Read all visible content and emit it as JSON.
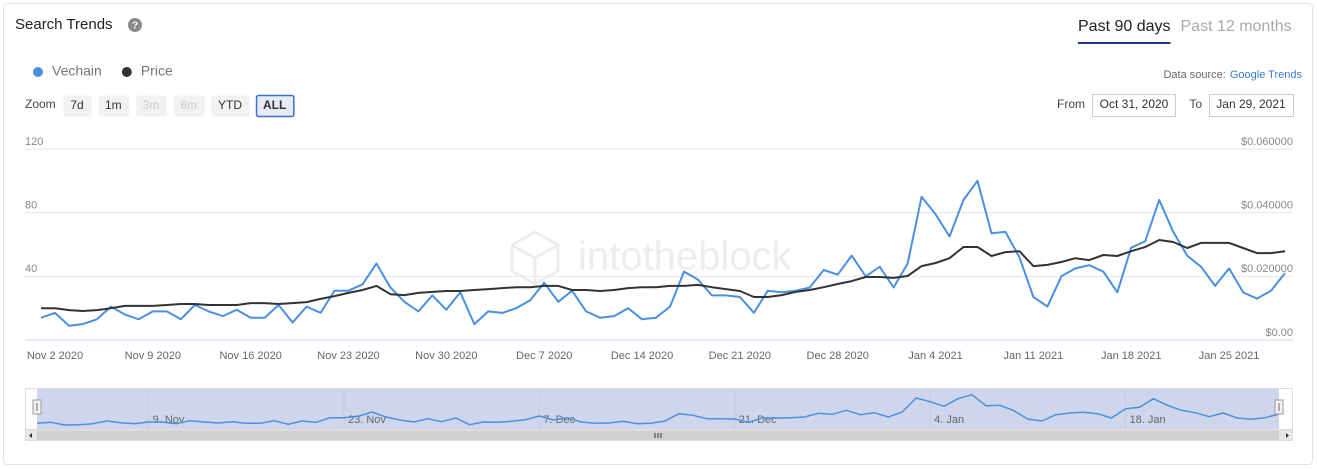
{
  "header": {
    "help": "?",
    "tabs": [
      {
        "label": "Past 90 days",
        "active": true
      },
      {
        "label": "Past 12 months",
        "active": false
      }
    ]
  },
  "source": {
    "label": "Data source:",
    "link": "Google Trends"
  },
  "zoom": {
    "label": "Zoom",
    "buttons": [
      {
        "label": "7d",
        "disabled": false,
        "active": false
      },
      {
        "label": "1m",
        "disabled": false,
        "active": false
      },
      {
        "label": "3m",
        "disabled": true,
        "active": false
      },
      {
        "label": "6m",
        "disabled": true,
        "active": false
      },
      {
        "label": "YTD",
        "disabled": false,
        "active": false
      },
      {
        "label": "ALL",
        "disabled": false,
        "active": true
      }
    ]
  },
  "date_range": {
    "from_label": "From",
    "from": "Oct 31, 2020",
    "to_label": "To",
    "to": "Jan 29, 2021"
  },
  "watermark": "intotheblock",
  "navigator": {
    "xticks": [
      {
        "value": "2020-11-09",
        "label": "9. Nov"
      },
      {
        "value": "2020-11-23",
        "label": "23. Nov"
      },
      {
        "value": "2020-12-07",
        "label": "7. Dec"
      },
      {
        "value": "2020-12-21",
        "label": "21. Dec"
      },
      {
        "value": "2021-01-04",
        "label": "4. Jan"
      },
      {
        "value": "2021-01-18",
        "label": "18. Jan"
      }
    ]
  },
  "chart_data": {
    "type": "line",
    "title": "Search Trends",
    "x": [
      "2020-11-01",
      "2020-11-02",
      "2020-11-03",
      "2020-11-04",
      "2020-11-05",
      "2020-11-06",
      "2020-11-07",
      "2020-11-08",
      "2020-11-09",
      "2020-11-10",
      "2020-11-11",
      "2020-11-12",
      "2020-11-13",
      "2020-11-14",
      "2020-11-15",
      "2020-11-16",
      "2020-11-17",
      "2020-11-18",
      "2020-11-19",
      "2020-11-20",
      "2020-11-21",
      "2020-11-22",
      "2020-11-23",
      "2020-11-24",
      "2020-11-25",
      "2020-11-26",
      "2020-11-27",
      "2020-11-28",
      "2020-11-29",
      "2020-11-30",
      "2020-12-01",
      "2020-12-02",
      "2020-12-03",
      "2020-12-04",
      "2020-12-05",
      "2020-12-06",
      "2020-12-07",
      "2020-12-08",
      "2020-12-09",
      "2020-12-10",
      "2020-12-11",
      "2020-12-12",
      "2020-12-13",
      "2020-12-14",
      "2020-12-15",
      "2020-12-16",
      "2020-12-17",
      "2020-12-18",
      "2020-12-19",
      "2020-12-20",
      "2020-12-21",
      "2020-12-22",
      "2020-12-23",
      "2020-12-24",
      "2020-12-25",
      "2020-12-26",
      "2020-12-27",
      "2020-12-28",
      "2020-12-29",
      "2020-12-30",
      "2020-12-31",
      "2021-01-01",
      "2021-01-02",
      "2021-01-03",
      "2021-01-04",
      "2021-01-05",
      "2021-01-06",
      "2021-01-07",
      "2021-01-08",
      "2021-01-09",
      "2021-01-10",
      "2021-01-11",
      "2021-01-12",
      "2021-01-13",
      "2021-01-14",
      "2021-01-15",
      "2021-01-16",
      "2021-01-17",
      "2021-01-18",
      "2021-01-19",
      "2021-01-20",
      "2021-01-21",
      "2021-01-22",
      "2021-01-23",
      "2021-01-24",
      "2021-01-25",
      "2021-01-26",
      "2021-01-27",
      "2021-01-28",
      "2021-01-29"
    ],
    "xlim": [
      "2020-11-01",
      "2021-01-29"
    ],
    "xticks": [
      {
        "value": "2020-11-02",
        "label": "Nov 2 2020"
      },
      {
        "value": "2020-11-09",
        "label": "Nov 9 2020"
      },
      {
        "value": "2020-11-16",
        "label": "Nov 16 2020"
      },
      {
        "value": "2020-11-23",
        "label": "Nov 23 2020"
      },
      {
        "value": "2020-11-30",
        "label": "Nov 30 2020"
      },
      {
        "value": "2020-12-07",
        "label": "Dec 7 2020"
      },
      {
        "value": "2020-12-14",
        "label": "Dec 14 2020"
      },
      {
        "value": "2020-12-21",
        "label": "Dec 21 2020"
      },
      {
        "value": "2020-12-28",
        "label": "Dec 28 2020"
      },
      {
        "value": "2021-01-04",
        "label": "Jan 4 2021"
      },
      {
        "value": "2021-01-11",
        "label": "Jan 11 2021"
      },
      {
        "value": "2021-01-18",
        "label": "Jan 18 2021"
      },
      {
        "value": "2021-01-25",
        "label": "Jan 25 2021"
      }
    ],
    "ylim": [
      0,
      120
    ],
    "yticks": [
      40,
      80,
      120
    ],
    "y2lim": [
      0,
      0.06
    ],
    "y2ticks": [
      {
        "value": 0,
        "label": "$0.00"
      },
      {
        "value": 0.02,
        "label": "$0.020000"
      },
      {
        "value": 0.04,
        "label": "$0.040000"
      },
      {
        "value": 0.06,
        "label": "$0.060000"
      }
    ],
    "grid": true,
    "series": [
      {
        "name": "Vechain",
        "color": "#4a90e2",
        "values": [
          14,
          17,
          9,
          10,
          13,
          21,
          16,
          13,
          18,
          18,
          13,
          22,
          18,
          15,
          19,
          14,
          14,
          22,
          11,
          21,
          17,
          31,
          31,
          35,
          48,
          33,
          24,
          18,
          28,
          19,
          30,
          10,
          18,
          17,
          20,
          25,
          36,
          24,
          31,
          18,
          14,
          15,
          20,
          13,
          14,
          21,
          43,
          38,
          28,
          28,
          27,
          17,
          31,
          30,
          31,
          33,
          44,
          41,
          53,
          40,
          46,
          33,
          48,
          90,
          79,
          65,
          88,
          100,
          67,
          68,
          52,
          27,
          21,
          40,
          45,
          47,
          43,
          30,
          58,
          62,
          88,
          68,
          53,
          46,
          34,
          45,
          30,
          26,
          31,
          42
        ]
      },
      {
        "name": "Price",
        "color": "#333333",
        "axis": "y2",
        "values": [
          0.01,
          0.01,
          0.0094,
          0.0091,
          0.0094,
          0.01,
          0.0107,
          0.0107,
          0.0107,
          0.011,
          0.0113,
          0.0113,
          0.011,
          0.011,
          0.011,
          0.0116,
          0.0116,
          0.0113,
          0.0116,
          0.0119,
          0.0129,
          0.0138,
          0.0148,
          0.0157,
          0.017,
          0.0144,
          0.0141,
          0.0148,
          0.0151,
          0.0154,
          0.0154,
          0.0157,
          0.016,
          0.0163,
          0.0166,
          0.0166,
          0.017,
          0.017,
          0.0157,
          0.0157,
          0.0154,
          0.0157,
          0.0163,
          0.0166,
          0.0166,
          0.017,
          0.017,
          0.0173,
          0.0166,
          0.016,
          0.0154,
          0.0135,
          0.0135,
          0.0141,
          0.0151,
          0.0157,
          0.0166,
          0.0176,
          0.0185,
          0.0198,
          0.0198,
          0.0195,
          0.0201,
          0.0232,
          0.0242,
          0.0257,
          0.0292,
          0.0292,
          0.0264,
          0.0276,
          0.0279,
          0.0232,
          0.0236,
          0.0245,
          0.0257,
          0.0251,
          0.0267,
          0.0264,
          0.0279,
          0.0292,
          0.0314,
          0.0308,
          0.0289,
          0.0305,
          0.0305,
          0.0305,
          0.0289,
          0.0273,
          0.0273,
          0.0279
        ]
      }
    ]
  }
}
